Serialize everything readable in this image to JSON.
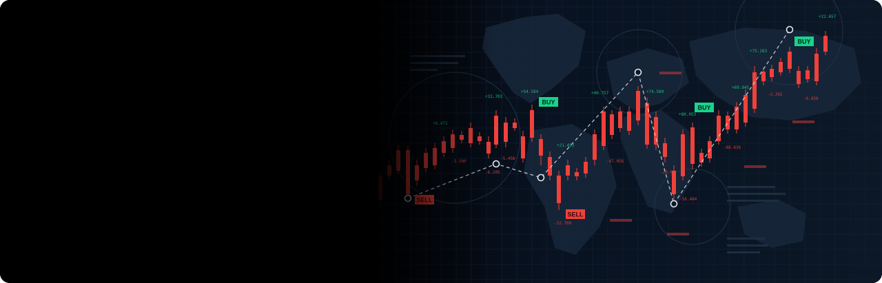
{
  "scene": {
    "description_free": true,
    "signal_labels": {
      "buy": "BUY",
      "sell": "SELL"
    },
    "colors": {
      "bull": "#18d48a",
      "bear": "#f0413a",
      "background_dark": "#000000",
      "background_navy": "#0b1624",
      "map": "#1b2a3c",
      "grid": "#16263a",
      "trend_line": "#d8dde3"
    },
    "price_tags": [
      "+22.657",
      "+75.283",
      "+69.845",
      "+54.584",
      "+33.703",
      "+49.757",
      "+74.589",
      "+80.053",
      "+21.453",
      "+6.471",
      "-3.302",
      "-5.458",
      "-6.205",
      "-47.056",
      "-29.04",
      "-86.636",
      "-56.484",
      "-32.700",
      "-3.500",
      "-6.858"
    ]
  }
}
